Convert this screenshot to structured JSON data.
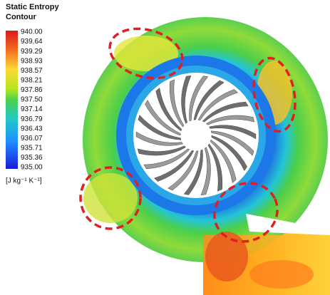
{
  "legend": {
    "title": [
      "Static Entropy",
      "Contour"
    ],
    "ticks": [
      "940.00",
      "939.64",
      "939.29",
      "938.93",
      "938.57",
      "938.21",
      "937.86",
      "937.50",
      "937.14",
      "936.79",
      "936.43",
      "936.07",
      "935.71",
      "935.36",
      "935.00"
    ],
    "unit": "[J kg⁻¹ K⁻¹]"
  }
}
